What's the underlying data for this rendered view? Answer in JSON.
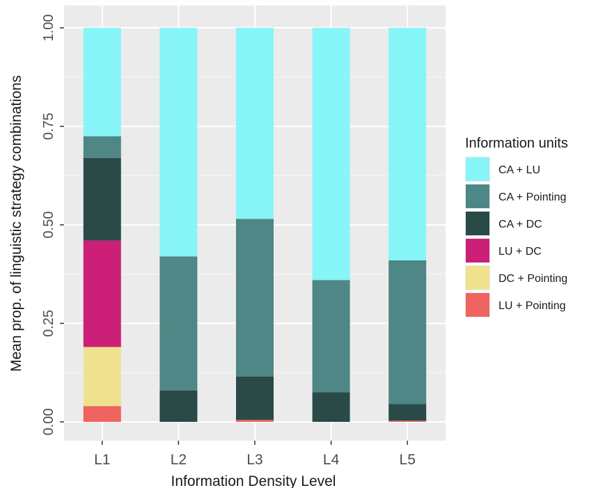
{
  "chart_data": {
    "type": "bar",
    "stacked": true,
    "categories": [
      "L1",
      "L2",
      "L3",
      "L4",
      "L5"
    ],
    "xlabel": "Information Density Level",
    "ylabel": "Mean prop. of linguistic strategy combinations",
    "ylim": [
      0,
      1
    ],
    "yticks": [
      "0.00",
      "0.25",
      "0.50",
      "0.75",
      "1.00"
    ],
    "grid": true,
    "legend": {
      "title": "Information units",
      "position": "right"
    },
    "series": [
      {
        "name": "LU + Pointing",
        "color": "#ef6360",
        "values": [
          0.04,
          0.0,
          0.005,
          0.0,
          0.003
        ]
      },
      {
        "name": "DC + Pointing",
        "color": "#efe28e",
        "values": [
          0.15,
          0.0,
          0.0,
          0.0,
          0.0
        ]
      },
      {
        "name": "LU + DC",
        "color": "#cc1f77",
        "values": [
          0.27,
          0.0,
          0.0,
          0.0,
          0.0
        ]
      },
      {
        "name": "CA + DC",
        "color": "#294a47",
        "values": [
          0.21,
          0.08,
          0.11,
          0.075,
          0.042
        ]
      },
      {
        "name": "CA + Pointing",
        "color": "#4e8785",
        "values": [
          0.055,
          0.34,
          0.4,
          0.285,
          0.365
        ]
      },
      {
        "name": "CA + LU",
        "color": "#88f5f8",
        "values": [
          0.275,
          0.58,
          0.485,
          0.64,
          0.59
        ]
      }
    ],
    "legend_order": [
      "CA + LU",
      "CA + Pointing",
      "CA + DC",
      "LU + DC",
      "DC + Pointing",
      "LU + Pointing"
    ]
  }
}
